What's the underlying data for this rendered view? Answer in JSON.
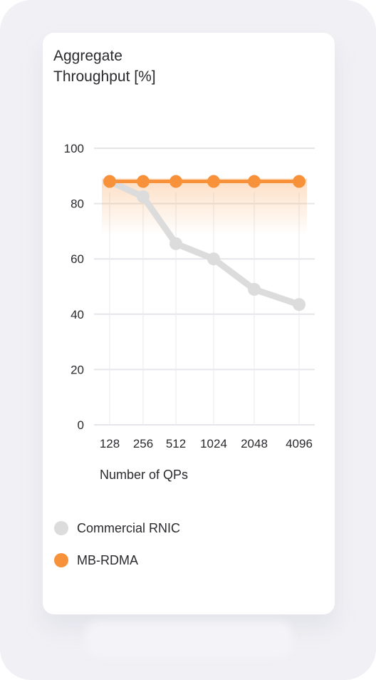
{
  "chart_data": {
    "type": "line",
    "title": "Aggregate\nThroughput [%]",
    "xlabel": "Number of QPs",
    "ylabel": "",
    "categories": [
      "128",
      "256",
      "512",
      "1024",
      "2048",
      "4096"
    ],
    "ylim": [
      0,
      100
    ],
    "yticks": [
      0,
      20,
      40,
      60,
      80,
      100
    ],
    "grid": true,
    "legend_position": "bottom",
    "series": [
      {
        "name": "Commercial RNIC",
        "values": [
          88,
          82.5,
          65.5,
          60,
          49,
          43.5
        ],
        "color": "#dcdcdc"
      },
      {
        "name": "MB-RDMA",
        "values": [
          88,
          88,
          88,
          88,
          88,
          88
        ],
        "color": "#f7923a"
      }
    ]
  }
}
